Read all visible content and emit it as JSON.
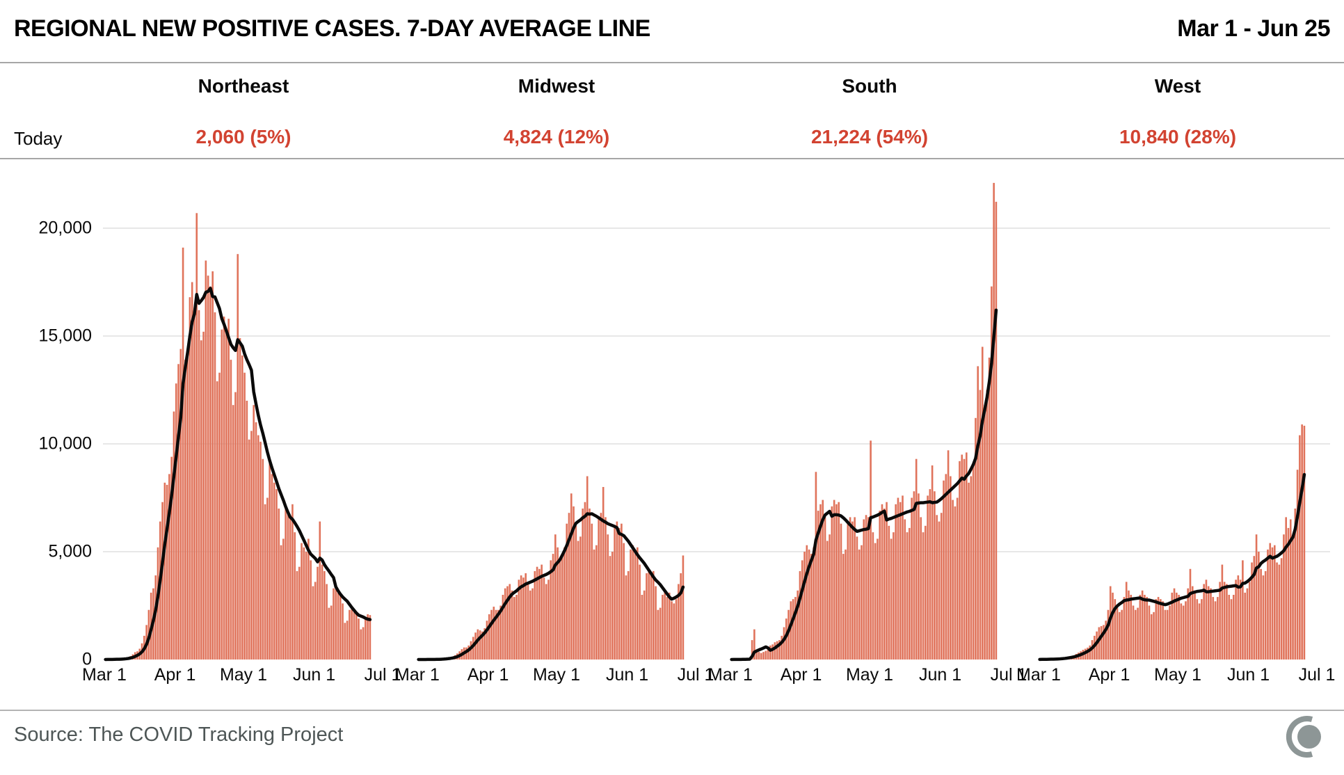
{
  "header": {
    "title": "REGIONAL NEW POSITIVE CASES. 7-DAY AVERAGE LINE",
    "date_range": "Mar 1 - Jun 25"
  },
  "today_label": "Today",
  "footer": {
    "source": "Source: The COVID Tracking Project",
    "logo": "covid-tracking-project-logo"
  },
  "colors": {
    "bar": "#e0735b",
    "average_line": "#0a0a0a",
    "today_value_red": "#d24331",
    "gridline": "#e7e7e7",
    "source_text": "#4e5656",
    "logo_gray": "#8d9696"
  },
  "axes": {
    "y_ticks": [
      "20,000",
      "15,000",
      "10,000",
      "5,000",
      "0"
    ],
    "y_tick_values": [
      20000,
      15000,
      10000,
      5000,
      0
    ],
    "x_ticks": [
      "Mar 1",
      "Apr 1",
      "May 1",
      "Jun 1",
      "Jul 1"
    ],
    "x_tick_days": [
      0,
      31,
      61,
      92,
      122
    ],
    "x_total_days": 122,
    "grid": "horizontal only"
  },
  "chart_data": {
    "type": "bar",
    "title": "REGIONAL NEW POSITIVE CASES. 7-DAY AVERAGE LINE",
    "date_range": "Mar 1 - Jun 25",
    "overlay_line": "7-day trailing average of daily values",
    "x_start": "Mar 1",
    "x_end": "Jun 25",
    "ylim": [
      0,
      22900
    ],
    "regions": [
      {
        "name": "Northeast",
        "today_value": "2,060 (5%)",
        "daily": [
          2,
          4,
          6,
          10,
          18,
          28,
          24,
          35,
          50,
          75,
          110,
          160,
          240,
          340,
          380,
          500,
          750,
          1100,
          1600,
          2300,
          3100,
          3300,
          3900,
          5200,
          6400,
          7300,
          8200,
          8100,
          8600,
          9400,
          11500,
          12800,
          13700,
          14400,
          19100,
          13900,
          14200,
          16800,
          17500,
          16300,
          20700,
          16200,
          14800,
          15200,
          18500,
          17800,
          17300,
          18000,
          16100,
          12900,
          13300,
          15300,
          15900,
          15200,
          15800,
          13900,
          11800,
          12400,
          18800,
          14900,
          14100,
          13300,
          12000,
          10200,
          10600,
          11800,
          11000,
          10400,
          10100,
          9300,
          7200,
          7500,
          9100,
          8600,
          8200,
          7900,
          7000,
          5300,
          5600,
          7000,
          6800,
          6600,
          7200,
          5900,
          4100,
          4300,
          5400,
          5200,
          5000,
          5600,
          4600,
          3400,
          3600,
          4300,
          6400,
          4400,
          4100,
          3500,
          2400,
          2500,
          3300,
          3400,
          3100,
          3000,
          2600,
          1700,
          1800,
          2300,
          2400,
          2200,
          2100,
          1900,
          1400,
          1500,
          1900,
          2100,
          2060
        ]
      },
      {
        "name": "Midwest",
        "today_value": "4,824 (12%)",
        "daily": [
          1,
          1,
          2,
          3,
          5,
          8,
          7,
          10,
          14,
          20,
          30,
          45,
          65,
          90,
          110,
          140,
          200,
          280,
          380,
          480,
          560,
          560,
          650,
          850,
          1050,
          1250,
          1400,
          1350,
          1300,
          1450,
          1800,
          2100,
          2300,
          2450,
          2300,
          2300,
          2500,
          3000,
          3300,
          3400,
          3500,
          3200,
          2900,
          3000,
          3700,
          3900,
          3800,
          4000,
          3500,
          3200,
          3300,
          4100,
          4300,
          4200,
          4400,
          3800,
          3500,
          3700,
          4600,
          4900,
          5800,
          5200,
          4700,
          4900,
          5200,
          6300,
          6800,
          7700,
          7100,
          6200,
          5500,
          5700,
          7000,
          7300,
          8500,
          7000,
          6300,
          5100,
          5300,
          6500,
          6800,
          8000,
          6600,
          5800,
          4800,
          5000,
          6200,
          6400,
          6100,
          6300,
          5400,
          3900,
          4100,
          5100,
          5300,
          5000,
          5200,
          4400,
          3000,
          3200,
          4000,
          4200,
          3900,
          4100,
          3400,
          2300,
          2400,
          3000,
          3200,
          2900,
          3100,
          2700,
          2600,
          2800,
          3500,
          4000,
          4824
        ]
      },
      {
        "name": "South",
        "today_value": "21,224 (54%)",
        "daily": [
          2,
          3,
          4,
          6,
          10,
          15,
          14,
          25,
          40,
          900,
          1400,
          400,
          350,
          300,
          350,
          400,
          550,
          650,
          700,
          800,
          850,
          900,
          1100,
          1500,
          1900,
          2300,
          2700,
          2800,
          2900,
          3200,
          4100,
          4600,
          5000,
          5300,
          5100,
          4900,
          5200,
          8700,
          6900,
          7200,
          7400,
          6600,
          5500,
          5800,
          7100,
          7400,
          7200,
          7300,
          6300,
          4900,
          5100,
          6300,
          6600,
          6400,
          6600,
          5700,
          5100,
          5300,
          6500,
          6700,
          6600,
          10150,
          5900,
          5400,
          5600,
          6900,
          7200,
          7000,
          7300,
          6200,
          5600,
          5900,
          7200,
          7500,
          7300,
          7600,
          6500,
          5900,
          6100,
          7500,
          7800,
          9300,
          7700,
          6600,
          5900,
          6200,
          7600,
          7900,
          9000,
          7800,
          6700,
          6400,
          6800,
          8300,
          8600,
          9700,
          8500,
          7400,
          7100,
          7500,
          9200,
          9500,
          9300,
          9600,
          8200,
          8500,
          9000,
          11200,
          13600,
          12500,
          14500,
          11800,
          12500,
          14000,
          17300,
          22100,
          21224
        ]
      },
      {
        "name": "West",
        "today_value": "10,840 (28%)",
        "daily": [
          5,
          8,
          10,
          14,
          20,
          28,
          25,
          30,
          40,
          55,
          75,
          100,
          130,
          150,
          160,
          190,
          260,
          320,
          380,
          450,
          500,
          550,
          650,
          900,
          1100,
          1300,
          1500,
          1550,
          1600,
          1800,
          2300,
          3400,
          3100,
          2800,
          2400,
          2200,
          2300,
          2900,
          3600,
          3200,
          3000,
          2500,
          2300,
          2400,
          3000,
          3200,
          3000,
          2900,
          2500,
          2100,
          2200,
          2800,
          2900,
          2800,
          2700,
          2300,
          2300,
          2500,
          3100,
          3300,
          3100,
          3000,
          2600,
          2500,
          2700,
          3300,
          4200,
          3400,
          3200,
          2800,
          2600,
          2800,
          3500,
          3700,
          3400,
          3300,
          2900,
          2700,
          2900,
          3600,
          4400,
          3600,
          3500,
          3000,
          2800,
          3000,
          3700,
          3900,
          3700,
          4600,
          3100,
          3300,
          3600,
          4500,
          4800,
          5800,
          5000,
          4200,
          3900,
          4100,
          5100,
          5400,
          5200,
          5300,
          4500,
          4400,
          4700,
          5800,
          6600,
          6100,
          6500,
          5600,
          7000,
          8800,
          10400,
          10900,
          10840
        ]
      }
    ]
  }
}
